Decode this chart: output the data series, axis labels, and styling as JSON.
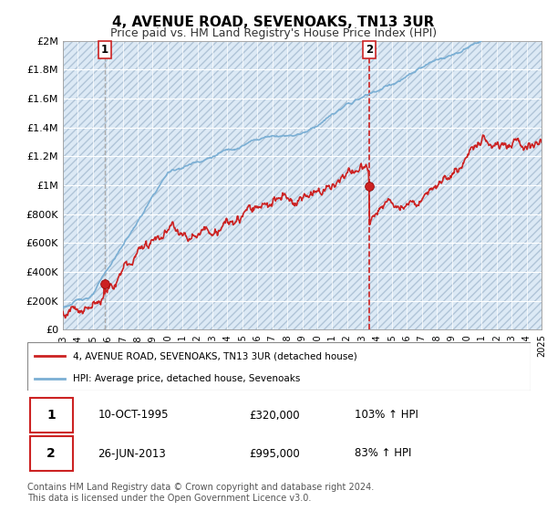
{
  "title": "4, AVENUE ROAD, SEVENOAKS, TN13 3UR",
  "subtitle": "Price paid vs. HM Land Registry's House Price Index (HPI)",
  "hpi_color": "#7bafd4",
  "price_color": "#cc2222",
  "sale1_vline_color": "#aaaaaa",
  "sale2_vline_color": "#cc2222",
  "sale1": {
    "date": 1995.78,
    "price": 320000,
    "label": "1"
  },
  "sale2": {
    "date": 2013.48,
    "price": 995000,
    "label": "2"
  },
  "ylim": [
    0,
    2000000
  ],
  "yticks": [
    0,
    200000,
    400000,
    600000,
    800000,
    1000000,
    1200000,
    1400000,
    1600000,
    1800000,
    2000000
  ],
  "ytick_labels": [
    "£0",
    "£200K",
    "£400K",
    "£600K",
    "£800K",
    "£1M",
    "£1.2M",
    "£1.4M",
    "£1.6M",
    "£1.8M",
    "£2M"
  ],
  "legend_line1": "4, AVENUE ROAD, SEVENOAKS, TN13 3UR (detached house)",
  "legend_line2": "HPI: Average price, detached house, Sevenoaks",
  "table_row1": [
    "1",
    "10-OCT-1995",
    "£320,000",
    "103% ↑ HPI"
  ],
  "table_row2": [
    "2",
    "26-JUN-2013",
    "£995,000",
    "83% ↑ HPI"
  ],
  "footnote": "Contains HM Land Registry data © Crown copyright and database right 2024.\nThis data is licensed under the Open Government Licence v3.0.",
  "bg_color": "#dce9f5",
  "bg_left_color": "#c8d8ea"
}
